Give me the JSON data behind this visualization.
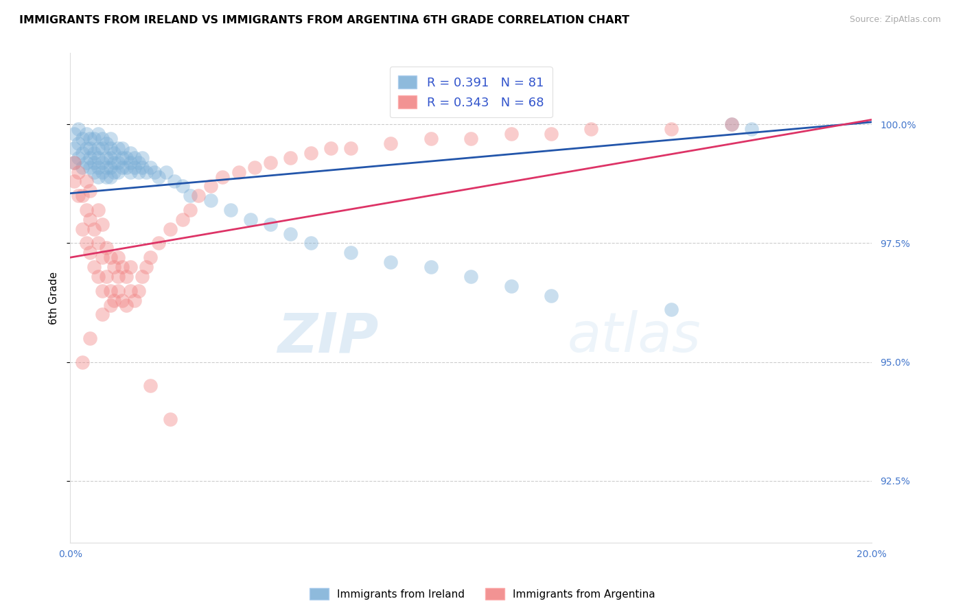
{
  "title": "IMMIGRANTS FROM IRELAND VS IMMIGRANTS FROM ARGENTINA 6TH GRADE CORRELATION CHART",
  "source": "Source: ZipAtlas.com",
  "ylabel": "6th Grade",
  "y_ticks": [
    92.5,
    95.0,
    97.5,
    100.0
  ],
  "xmin": 0.0,
  "xmax": 0.2,
  "ymin": 91.2,
  "ymax": 101.5,
  "legend_ireland": "Immigrants from Ireland",
  "legend_argentina": "Immigrants from Argentina",
  "R_ireland": 0.391,
  "N_ireland": 81,
  "R_argentina": 0.343,
  "N_argentina": 68,
  "color_ireland": "#7aaed6",
  "color_argentina": "#f08080",
  "line_color_ireland": "#2255aa",
  "line_color_argentina": "#dd3366",
  "ireland_x": [
    0.001,
    0.001,
    0.001,
    0.002,
    0.002,
    0.002,
    0.003,
    0.003,
    0.003,
    0.004,
    0.004,
    0.004,
    0.005,
    0.005,
    0.005,
    0.005,
    0.006,
    0.006,
    0.006,
    0.006,
    0.007,
    0.007,
    0.007,
    0.007,
    0.007,
    0.008,
    0.008,
    0.008,
    0.008,
    0.009,
    0.009,
    0.009,
    0.009,
    0.01,
    0.01,
    0.01,
    0.01,
    0.01,
    0.011,
    0.011,
    0.011,
    0.012,
    0.012,
    0.012,
    0.013,
    0.013,
    0.013,
    0.014,
    0.014,
    0.015,
    0.015,
    0.015,
    0.016,
    0.016,
    0.017,
    0.017,
    0.018,
    0.018,
    0.019,
    0.02,
    0.021,
    0.022,
    0.024,
    0.026,
    0.028,
    0.03,
    0.035,
    0.04,
    0.045,
    0.05,
    0.055,
    0.06,
    0.07,
    0.08,
    0.09,
    0.1,
    0.11,
    0.12,
    0.15,
    0.165,
    0.17
  ],
  "ireland_y": [
    99.2,
    99.5,
    99.8,
    99.3,
    99.6,
    99.9,
    99.1,
    99.4,
    99.7,
    99.2,
    99.5,
    99.8,
    99.1,
    99.3,
    99.5,
    99.7,
    99.0,
    99.2,
    99.4,
    99.7,
    98.9,
    99.1,
    99.3,
    99.5,
    99.8,
    99.0,
    99.2,
    99.5,
    99.7,
    98.9,
    99.1,
    99.3,
    99.6,
    98.9,
    99.1,
    99.3,
    99.5,
    99.7,
    99.0,
    99.2,
    99.4,
    99.0,
    99.2,
    99.5,
    99.1,
    99.3,
    99.5,
    99.1,
    99.3,
    99.0,
    99.2,
    99.4,
    99.1,
    99.3,
    99.0,
    99.2,
    99.1,
    99.3,
    99.0,
    99.1,
    99.0,
    98.9,
    99.0,
    98.8,
    98.7,
    98.5,
    98.4,
    98.2,
    98.0,
    97.9,
    97.7,
    97.5,
    97.3,
    97.1,
    97.0,
    96.8,
    96.6,
    96.4,
    96.1,
    100.0,
    99.9
  ],
  "argentina_x": [
    0.001,
    0.001,
    0.002,
    0.002,
    0.003,
    0.003,
    0.004,
    0.004,
    0.004,
    0.005,
    0.005,
    0.005,
    0.006,
    0.006,
    0.007,
    0.007,
    0.007,
    0.008,
    0.008,
    0.008,
    0.009,
    0.009,
    0.01,
    0.01,
    0.011,
    0.011,
    0.012,
    0.012,
    0.013,
    0.013,
    0.014,
    0.014,
    0.015,
    0.016,
    0.017,
    0.018,
    0.019,
    0.02,
    0.022,
    0.025,
    0.028,
    0.03,
    0.032,
    0.035,
    0.038,
    0.042,
    0.046,
    0.05,
    0.055,
    0.06,
    0.065,
    0.07,
    0.08,
    0.09,
    0.1,
    0.11,
    0.12,
    0.13,
    0.15,
    0.165,
    0.003,
    0.005,
    0.008,
    0.01,
    0.012,
    0.015,
    0.02,
    0.025
  ],
  "argentina_y": [
    98.8,
    99.2,
    98.5,
    99.0,
    97.8,
    98.5,
    97.5,
    98.2,
    98.8,
    97.3,
    98.0,
    98.6,
    97.0,
    97.8,
    96.8,
    97.5,
    98.2,
    96.5,
    97.2,
    97.9,
    96.8,
    97.4,
    96.5,
    97.2,
    96.3,
    97.0,
    96.5,
    97.2,
    96.3,
    97.0,
    96.2,
    96.8,
    96.5,
    96.3,
    96.5,
    96.8,
    97.0,
    97.2,
    97.5,
    97.8,
    98.0,
    98.2,
    98.5,
    98.7,
    98.9,
    99.0,
    99.1,
    99.2,
    99.3,
    99.4,
    99.5,
    99.5,
    99.6,
    99.7,
    99.7,
    99.8,
    99.8,
    99.9,
    99.9,
    100.0,
    95.0,
    95.5,
    96.0,
    96.2,
    96.8,
    97.0,
    94.5,
    93.8
  ],
  "ireland_line_x0": 0.0,
  "ireland_line_x1": 0.2,
  "ireland_line_y0": 98.55,
  "ireland_line_y1": 100.05,
  "argentina_line_x0": 0.0,
  "argentina_line_x1": 0.2,
  "argentina_line_y0": 97.2,
  "argentina_line_y1": 100.1
}
